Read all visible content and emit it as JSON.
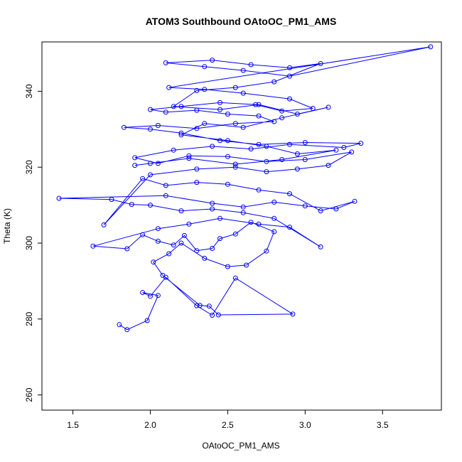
{
  "chart_data": {
    "type": "line",
    "title": "ATOM3 Southbound OAtoOC_PM1_AMS",
    "xlabel": "OAtoOC_PM1_AMS",
    "ylabel": "Theta (K)",
    "xlim": [
      1.3,
      3.88
    ],
    "ylim": [
      256,
      353
    ],
    "x_ticks": [
      1.5,
      2.0,
      2.5,
      3.0,
      3.5
    ],
    "x_tick_labels": [
      "1.5",
      "2.0",
      "2.5",
      "3.0",
      "3.5"
    ],
    "y_ticks": [
      260,
      280,
      300,
      320,
      340
    ],
    "y_tick_labels": [
      "260",
      "280",
      "300",
      "320",
      "340"
    ],
    "grid": false,
    "series_color": "#0000ff",
    "marker": "open-circle",
    "series": [
      {
        "x": [
          1.8,
          1.85,
          1.98,
          2.05,
          1.95,
          2.0,
          2.1,
          2.3,
          2.4,
          2.55,
          2.92,
          2.44,
          2.38,
          2.32,
          2.08,
          2.02,
          2.12,
          2.2,
          2.35,
          2.5,
          2.62,
          2.75,
          2.8,
          2.65,
          2.55,
          2.45,
          2.4,
          2.3,
          2.22,
          2.15,
          2.05,
          1.95,
          1.85,
          1.63,
          2.05,
          2.25,
          2.45,
          2.7,
          2.9,
          3.1,
          2.8,
          2.6,
          2.4,
          2.2,
          2.0,
          1.88,
          1.75,
          1.41,
          2.1,
          2.4,
          2.6,
          2.8,
          3.0,
          3.2,
          3.32,
          3.1,
          2.9,
          2.7,
          2.5,
          2.3,
          2.1,
          1.95,
          1.7,
          2.0,
          2.3,
          2.55,
          2.75,
          2.95,
          3.15,
          3.3,
          3.0,
          2.75,
          2.5,
          2.25,
          2.05,
          1.9,
          2.15,
          2.4,
          2.65,
          2.9,
          3.25,
          3.36,
          3.0,
          2.7,
          2.45,
          2.2,
          2.0,
          1.83,
          2.05,
          2.3,
          2.55,
          2.8,
          2.7,
          2.5,
          2.3,
          2.1,
          2.0,
          2.2,
          2.45,
          2.68,
          2.85,
          3.05,
          2.9,
          2.6,
          2.35,
          2.12,
          3.81,
          2.9,
          2.6,
          2.35,
          2.1,
          2.4,
          2.65,
          2.9,
          3.1,
          2.8,
          2.55,
          2.3,
          2.15,
          2.45,
          2.7,
          2.95,
          3.15,
          2.85,
          2.6,
          2.35,
          2.2,
          2.5,
          2.75,
          2.95,
          3.2,
          2.85,
          2.55,
          2.25,
          2.0,
          1.9
        ],
        "y": [
          278.5,
          277.2,
          279.6,
          286.2,
          287.0,
          286.0,
          291.0,
          283.5,
          281.0,
          290.8,
          281.3,
          281.1,
          283.4,
          283.6,
          291.5,
          295.0,
          297.2,
          300.0,
          296.0,
          293.8,
          294.2,
          297.9,
          303.0,
          305.5,
          302.4,
          301.2,
          298.6,
          298.0,
          302.0,
          299.5,
          300.5,
          302.2,
          298.5,
          299.2,
          303.8,
          305.0,
          306.5,
          305.0,
          304.2,
          299.0,
          306.5,
          308.0,
          309.0,
          308.5,
          310.0,
          310.2,
          311.5,
          311.8,
          312.5,
          310.5,
          309.5,
          310.8,
          309.8,
          309.0,
          311.0,
          308.5,
          313.0,
          314.0,
          315.5,
          316.0,
          315.2,
          317.0,
          304.8,
          318.0,
          319.5,
          320.0,
          318.8,
          319.5,
          320.5,
          324.0,
          322.0,
          321.5,
          322.8,
          323.0,
          321.0,
          322.5,
          324.5,
          325.5,
          324.8,
          326.0,
          325.2,
          326.3,
          326.5,
          326.0,
          327.0,
          329.0,
          330.0,
          330.5,
          331.0,
          330.2,
          331.5,
          332.0,
          333.5,
          334.0,
          335.0,
          334.5,
          335.2,
          336.0,
          337.0,
          336.5,
          334.8,
          335.5,
          338.0,
          339.5,
          340.5,
          341.0,
          351.7,
          344.0,
          345.5,
          346.5,
          347.5,
          348.2,
          347.0,
          346.2,
          347.3,
          342.5,
          341.0,
          340.2,
          336.0,
          335.2,
          336.5,
          334.0,
          335.8,
          333.0,
          330.5,
          331.5,
          328.5,
          327.0,
          325.5,
          323.5,
          324.5,
          322.0,
          320.8,
          322.3,
          321.0,
          320.5
        ]
      }
    ]
  }
}
